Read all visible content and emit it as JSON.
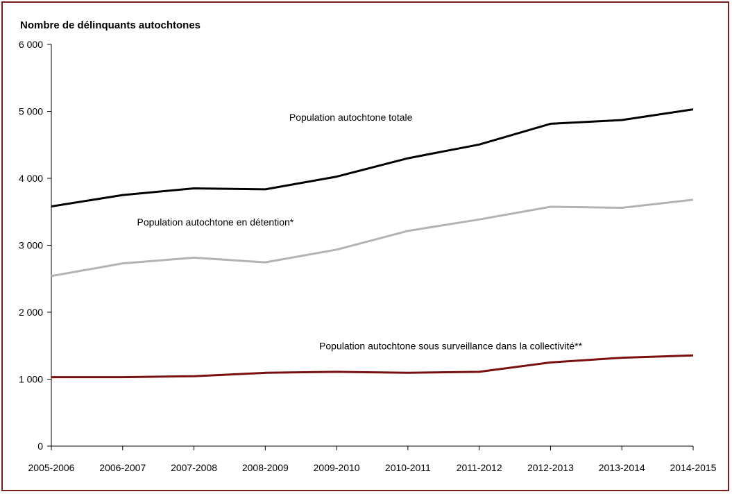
{
  "chart_data": {
    "type": "line",
    "ylabel": "Nombre de délinquants autochtones",
    "xlabel": "",
    "ylim": [
      0,
      6000
    ],
    "yticks": [
      0,
      1000,
      2000,
      3000,
      4000,
      5000,
      6000
    ],
    "ytick_labels": [
      "0",
      "1 000",
      "2 000",
      "3 000",
      "4 000",
      "5 000",
      "6 000"
    ],
    "categories": [
      "2005-2006",
      "2006-2007",
      "2007-2008",
      "2008-2009",
      "2009-2010",
      "2010-2011",
      "2011-2012",
      "2012-2013",
      "2013-2014",
      "2014-2015"
    ],
    "grid": false,
    "legend": "inline labels",
    "series": [
      {
        "name": "Population autochtone totale",
        "color": "#000000",
        "values": [
          3580,
          3750,
          3850,
          3835,
          4025,
          4300,
          4505,
          4815,
          4870,
          5030
        ]
      },
      {
        "name": "Population autochtone en détention*",
        "color": "#b3b3b3",
        "values": [
          2540,
          2730,
          2815,
          2745,
          2935,
          3215,
          3385,
          3575,
          3560,
          3680
        ]
      },
      {
        "name": "Population autochtone sous surveillance dans la collectivité**",
        "color": "#7a0f0f",
        "values": [
          1030,
          1030,
          1045,
          1095,
          1110,
          1095,
          1110,
          1250,
          1320,
          1355
        ]
      }
    ]
  }
}
